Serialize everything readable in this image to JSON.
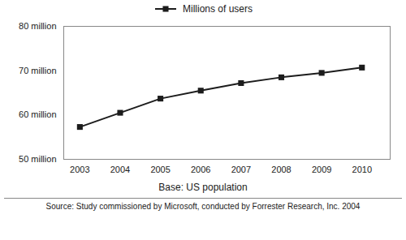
{
  "chart_data": {
    "type": "line",
    "x": [
      2003,
      2004,
      2005,
      2006,
      2007,
      2008,
      2009,
      2010
    ],
    "series": [
      {
        "name": "Millions of users",
        "color": "#1c1c1c",
        "marker": "square",
        "values": [
          57.3,
          60.5,
          63.7,
          65.5,
          67.2,
          68.5,
          69.5,
          70.7
        ]
      }
    ],
    "xlim": [
      2002.6,
      2010.7
    ],
    "xticks": [
      2003,
      2004,
      2005,
      2006,
      2007,
      2008,
      2009,
      2010
    ],
    "ylim": [
      50,
      80
    ],
    "yticks": [
      {
        "value": 50,
        "label": "50 million"
      },
      {
        "value": 60,
        "label": "60 million"
      },
      {
        "value": 70,
        "label": "70 million"
      },
      {
        "value": 80,
        "label": "80 million"
      }
    ],
    "xlabel": "Base: US population",
    "annotations": [
      "Source: Study commissioned by Microsoft, conducted by Forrester Research, Inc. 2004"
    ],
    "grid": false,
    "legend": "top"
  }
}
